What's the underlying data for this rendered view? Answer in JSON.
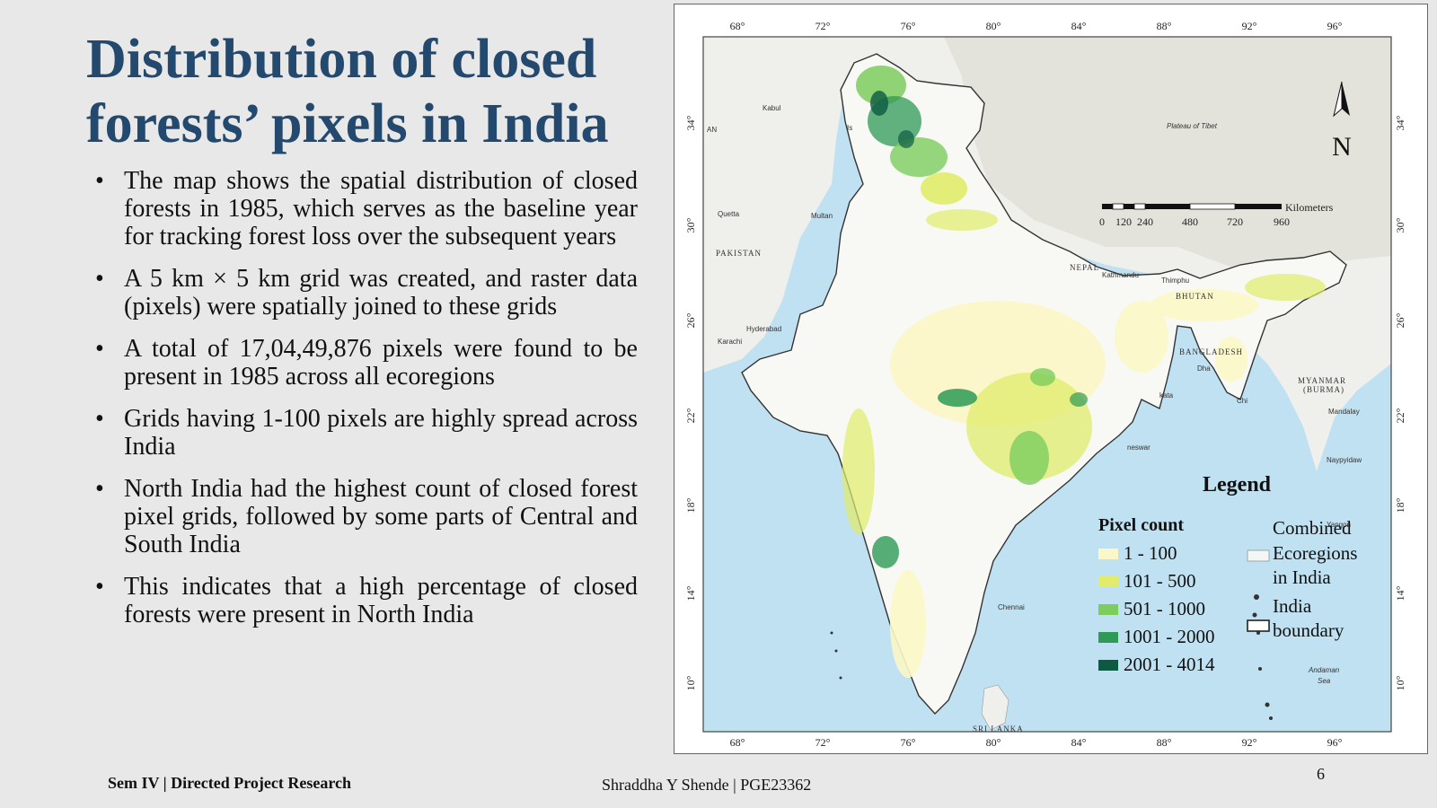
{
  "slide": {
    "title": "Distribution of closed forests’ pixels in India",
    "bullets": [
      "The map shows the spatial distribution of closed forests in 1985, which serves as the baseline year for tracking forest loss over the subsequent years",
      "A 5 km × 5 km grid was created, and raster data (pixels) were spatially joined to these grids",
      "A total of 17,04,49,876 pixels were found to be present in 1985 across all ecoregions",
      "Grids having 1-100 pixels are highly spread across India",
      "North India had the highest count of closed forest pixel grids, followed by some parts of Central and South India",
      "This indicates that a high percentage of closed forests were present in North India"
    ],
    "footer_left": "Sem IV | Directed Project Research",
    "footer_center": "Shraddha Y Shende | PGE23362",
    "page_number": "6"
  },
  "map": {
    "longitude_ticks": [
      "68°",
      "72°",
      "76°",
      "80°",
      "84°",
      "88°",
      "92°",
      "96°"
    ],
    "latitude_ticks": [
      "34°",
      "30°",
      "26°",
      "22°",
      "18°",
      "14°",
      "10°"
    ],
    "places": {
      "plateau": "Plateau of Tibet",
      "kabul": "Kabul",
      "islamabad": "Is",
      "an": "AN",
      "quetta": "Quetta",
      "multan": "Multan",
      "pakistan": "PAKISTAN",
      "hyderabad": "Hyderabad",
      "karachi": "Karachi",
      "nepal": "NEPAL",
      "kathmandu": "Kathmandu",
      "thimphu": "Thimphu",
      "bhutan": "BHUTAN",
      "bangladesh": "BANGLADESH",
      "dhaka": "Dha",
      "kolkata": "kata",
      "chittagong": "Chi",
      "myanmar": "MYANMAR",
      "burma": "(BURMA)",
      "mandalay": "Mandalay",
      "naypyidaw": "Naypyidaw",
      "yangon": "Yangon",
      "bhubaneswar": "neswar",
      "chennai": "Chennai",
      "sri_lanka": "SRI LANKA",
      "andaman_sea": "Andaman",
      "andaman_sea2": "Sea"
    },
    "scale_bar": {
      "unit": "Kilometers",
      "labels": [
        "0",
        "120",
        "240",
        "480",
        "720",
        "960"
      ]
    },
    "north_arrow": "N",
    "legend": {
      "title": "Legend",
      "pixel_count_title": "Pixel count",
      "classes": [
        {
          "label": "1 - 100",
          "color": "#fbf7c8"
        },
        {
          "label": "101 - 500",
          "color": "#e0ec6a"
        },
        {
          "label": "501 - 1000",
          "color": "#7ccd5e"
        },
        {
          "label": "1001 - 2000",
          "color": "#2d9a55"
        },
        {
          "label": "2001 - 4014",
          "color": "#0d5a43"
        }
      ],
      "ecoregions_label_1": "Combined",
      "ecoregions_label_2": "Ecoregions",
      "ecoregions_label_3": "in India",
      "boundary_label_1": "India",
      "boundary_label_2": "boundary"
    },
    "colors": {
      "sea": "#bfe1f2",
      "land_outside": "#f1f1ee",
      "mountains": "#e2e2dc",
      "india_fill": "#f7f7f4",
      "boundary": "#333333"
    }
  }
}
